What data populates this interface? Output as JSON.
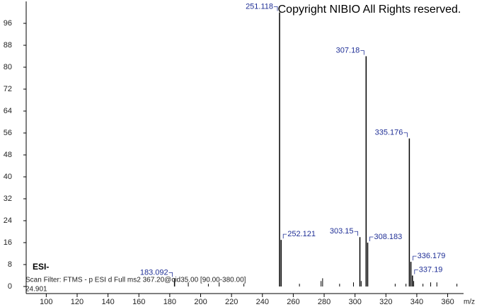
{
  "chart_data": {
    "type": "spectrum",
    "watermark": "Copyright NIBIO All Rights reserved.",
    "annotations": [
      "ESI-",
      "Scan Filter: FTMS - p ESI d Full ms2 367.20@cid35.00 [90.00-380.00]",
      "24.901"
    ],
    "xlabel": "m/z",
    "x": [
      183.092,
      251.118,
      252.121,
      303.15,
      307.18,
      308.183,
      335.176,
      336.179,
      337.19
    ],
    "values": [
      3,
      100,
      17,
      18,
      84,
      16,
      54,
      9,
      4
    ],
    "minor_peaks": {
      "x": [
        192,
        205,
        212,
        228,
        264,
        278,
        279,
        290,
        299,
        304,
        326,
        333,
        338,
        344,
        349,
        353,
        366
      ],
      "values": [
        1.5,
        1,
        1.5,
        1,
        1,
        2,
        3,
        1,
        1.5,
        2,
        1,
        1,
        2,
        1,
        1.5,
        1.5,
        1
      ]
    },
    "color": "#000000",
    "label_color": "#1f2f96",
    "xlim": [
      87,
      368
    ],
    "ylim": [
      0,
      104
    ],
    "xticks": [
      100,
      120,
      140,
      160,
      180,
      200,
      220,
      240,
      260,
      280,
      300,
      320,
      340,
      360
    ],
    "yticks": [
      0,
      8,
      16,
      24,
      32,
      40,
      48,
      56,
      64,
      72,
      80,
      88,
      96
    ]
  }
}
